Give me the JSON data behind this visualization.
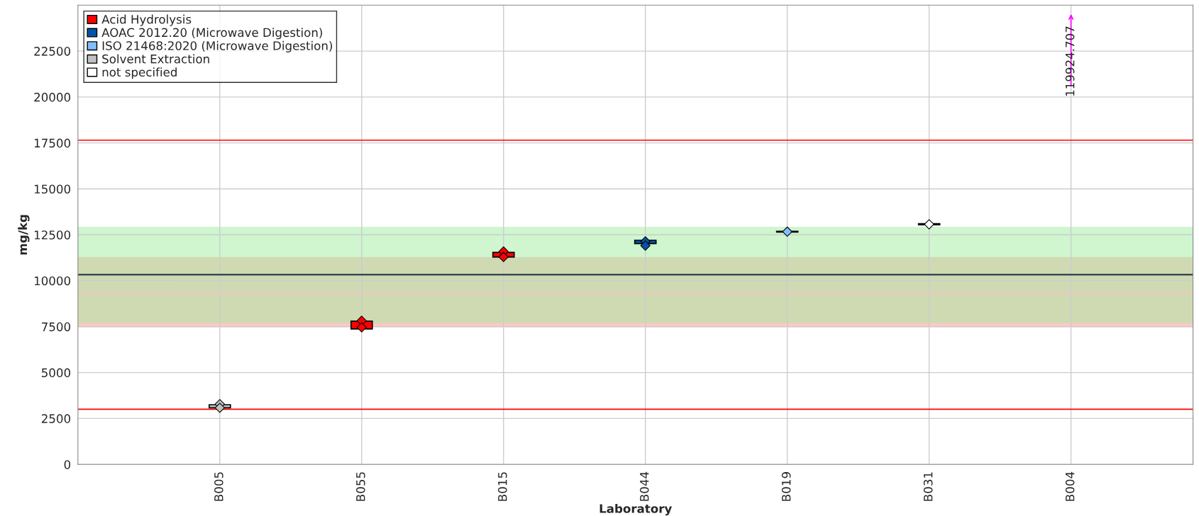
{
  "chart_data": {
    "type": "bar",
    "xlabel": "Laboratory",
    "ylabel": "mg/kg",
    "categories": [
      "B005",
      "B055",
      "B015",
      "B044",
      "B019",
      "B031",
      "B004"
    ],
    "series": [
      {
        "name": "Acid Hydrolysis",
        "color": "#ff0000",
        "values": [
          null,
          430,
          250,
          null,
          null,
          null,
          null
        ],
        "base": [
          null,
          7370,
          11290,
          null,
          null,
          null,
          null
        ]
      },
      {
        "name": "AOAC 2012.20 (Microwave Digestion)",
        "color": "#0055aa",
        "values": [
          null,
          null,
          null,
          180,
          null,
          null,
          null
        ],
        "base": [
          null,
          null,
          null,
          12020,
          null,
          null,
          null
        ]
      },
      {
        "name": "ISO 21468:2020 (Microwave Digestion)",
        "color": "#80bfff",
        "values": [
          null,
          null,
          null,
          null,
          40,
          null,
          null
        ],
        "base": [
          null,
          null,
          null,
          null,
          12650,
          null,
          null
        ]
      },
      {
        "name": "Solvent Extraction",
        "color": "#c0c0c0",
        "values": [
          170,
          null,
          null,
          null,
          null,
          null,
          null
        ],
        "base": [
          3080,
          null,
          null,
          null,
          null,
          null,
          null
        ]
      },
      {
        "name": "not specified",
        "color": "#ffffff",
        "values": [
          null,
          null,
          null,
          null,
          null,
          60,
          null
        ],
        "base": [
          null,
          null,
          null,
          null,
          null,
          13040,
          null
        ]
      },
      {
        "type": "scatter",
        "color": "#ff0000",
        "x": [
          "B055",
          "B055",
          "B015",
          "B015"
        ],
        "values": [
          7820,
          7460,
          11590,
          11290
        ]
      },
      {
        "type": "scatter",
        "color": "#0055aa",
        "x": [
          "B044",
          "B044"
        ],
        "values": [
          12140,
          11910
        ]
      },
      {
        "type": "scatter",
        "color": "#80bfff",
        "x": [
          "B019"
        ],
        "values": [
          12670
        ]
      },
      {
        "type": "scatter",
        "color": "#c0c0c0",
        "x": [
          "B005",
          "B005"
        ],
        "values": [
          3280,
          3080
        ]
      },
      {
        "type": "scatter",
        "color": "#ffffff",
        "x": [
          "B031"
        ],
        "values": [
          13070
        ]
      }
    ],
    "ylim": [
      0,
      25000
    ],
    "yticks": [
      0,
      2500,
      5000,
      7500,
      10000,
      12500,
      15000,
      17500,
      20000,
      22500
    ],
    "bands": [
      {
        "axis": "y",
        "from": 7460,
        "to": 11280,
        "color": "#ff9090"
      },
      {
        "axis": "y",
        "from": 7680,
        "to": 12930,
        "color": "#a0eea0"
      }
    ],
    "ref_lines": [
      {
        "axis": "y",
        "value": 17650,
        "color": "#ff0000"
      },
      {
        "axis": "y",
        "value": 3000,
        "color": "#ff0000"
      },
      {
        "axis": "y",
        "value": 10330,
        "color": "#1a2a3a"
      },
      {
        "axis": "y",
        "value": 9340,
        "color": "#f4c4c4"
      }
    ],
    "annotations": [
      "119924.707"
    ],
    "grid": true,
    "legend": "top left",
    "marker": "diamond"
  }
}
